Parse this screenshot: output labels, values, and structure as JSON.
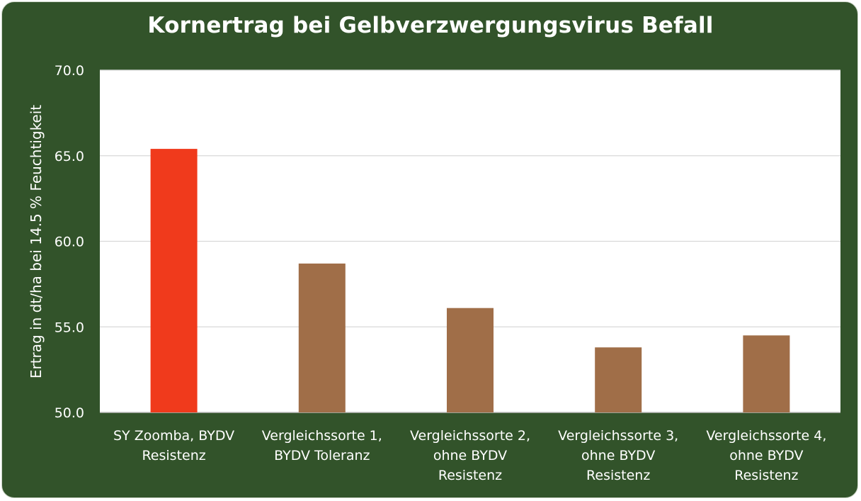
{
  "chart_data": {
    "type": "bar",
    "title": "Kornertrag bei Gelbverzwergungsvirus Befall",
    "ylabel": "Ertrag in dt/ha bei 14.5 % Feuchtigkeit",
    "xlabel": "",
    "ylim": [
      50,
      70
    ],
    "yticks": [
      "50.0",
      "55.0",
      "60.0",
      "65.0",
      "70.0"
    ],
    "grid": true,
    "categories": [
      [
        "SY Zoomba, BYDV",
        "Resistenz"
      ],
      [
        "Vergleichssorte 1,",
        "BYDV Toleranz"
      ],
      [
        "Vergleichssorte 2,",
        "ohne BYDV",
        "Resistenz"
      ],
      [
        "Vergleichssorte 3,",
        "ohne BYDV",
        "Resistenz"
      ],
      [
        "Vergleichssorte 4,",
        "ohne BYDV",
        "Resistenz"
      ]
    ],
    "values": [
      65.4,
      58.7,
      56.1,
      53.8,
      54.5
    ],
    "colors": [
      "#f03a1c",
      "#a06e48",
      "#a06e48",
      "#a06e48",
      "#a06e48"
    ]
  },
  "colors": {
    "background": "#32532a",
    "plot": "#ffffff",
    "grid": "#d9d9d9"
  }
}
